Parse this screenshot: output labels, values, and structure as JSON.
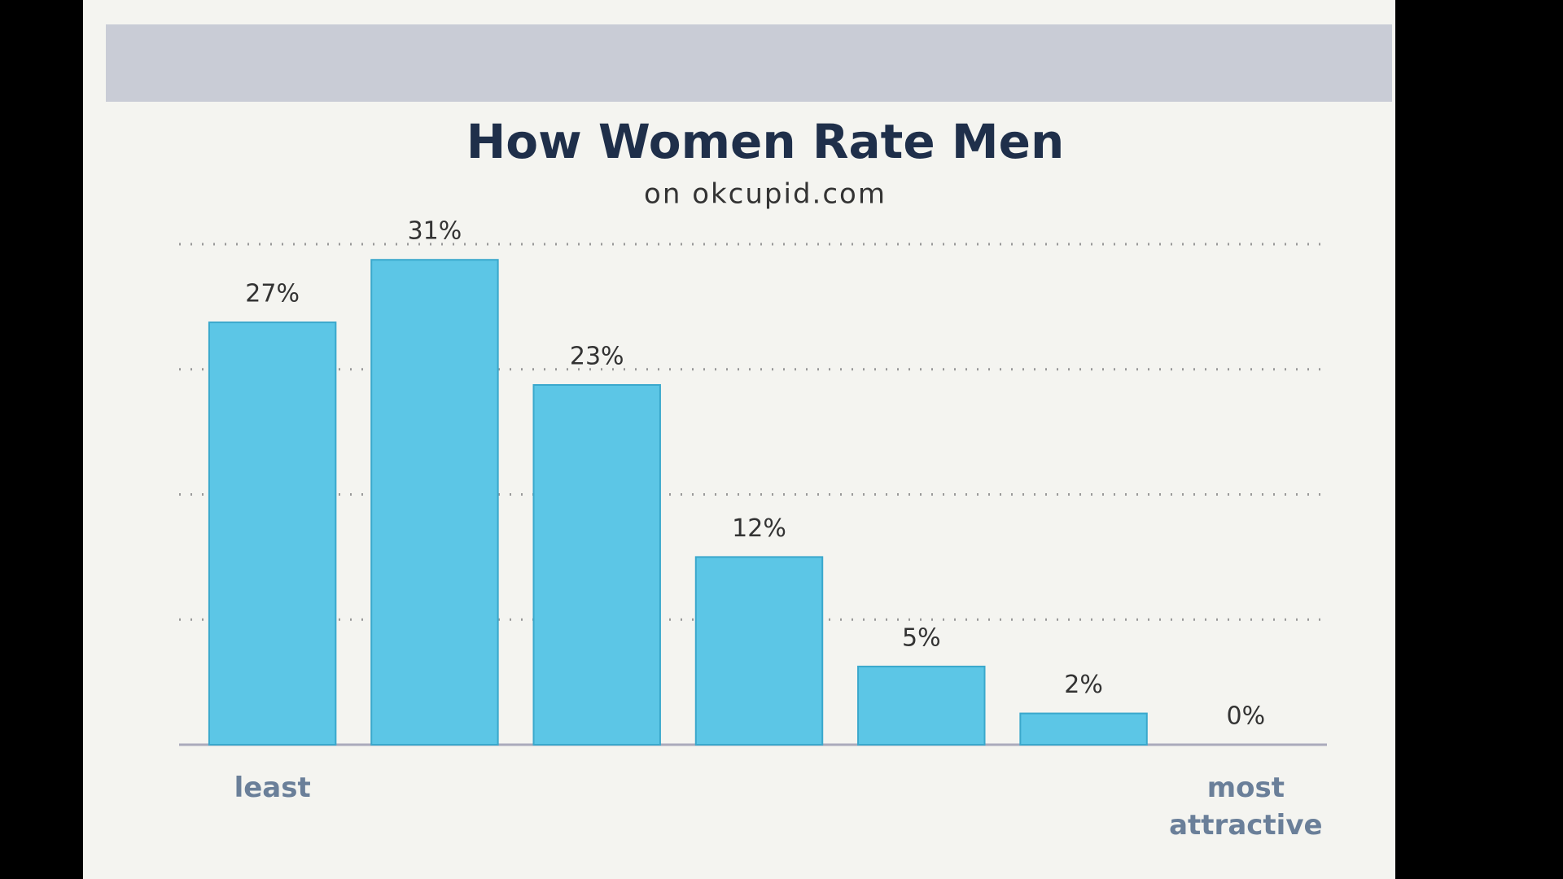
{
  "chart_data": {
    "type": "bar",
    "title": "How Women Rate Men",
    "subtitle": "on okcupid.com",
    "categories": [
      "least",
      null,
      null,
      null,
      null,
      null,
      "most attractive"
    ],
    "values": [
      27,
      31,
      23,
      12,
      5,
      2,
      0
    ],
    "value_labels": [
      "27%",
      "31%",
      "23%",
      "12%",
      "5%",
      "2%",
      "0%"
    ],
    "color": "#5cc6e6",
    "ylim": [
      0,
      32
    ],
    "yticks": [
      8,
      16,
      24,
      32
    ],
    "grid": true
  }
}
